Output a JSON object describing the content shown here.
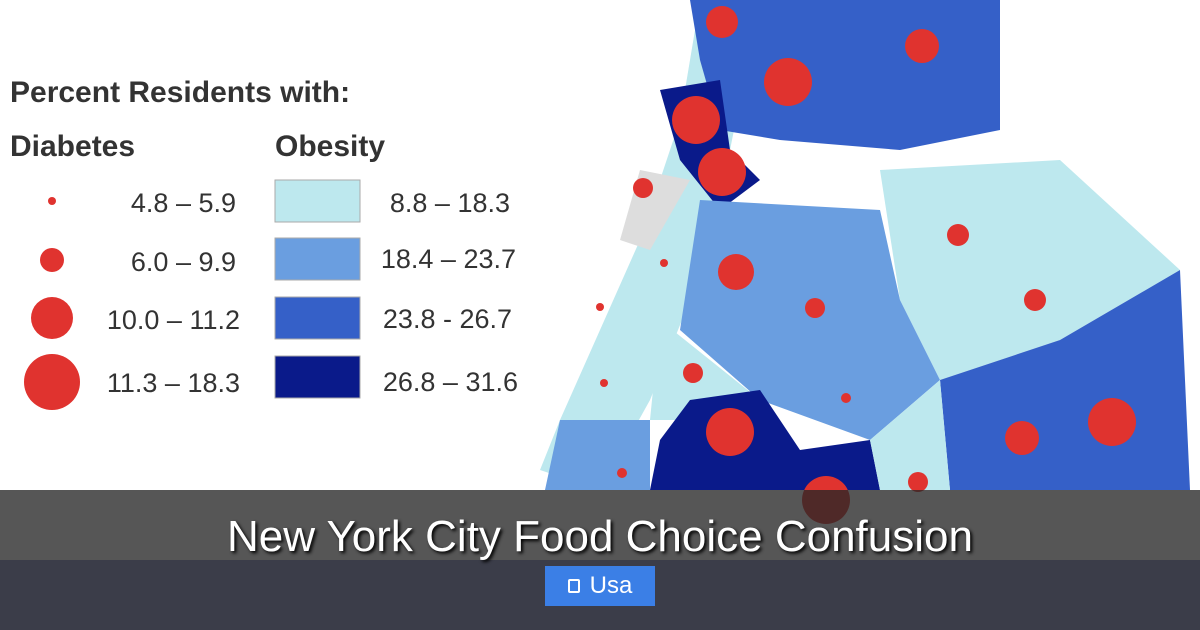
{
  "legend": {
    "title": "Percent Residents with:",
    "diabetes": {
      "heading": "Diabetes",
      "items": [
        "4.8 – 5.9",
        "6.0 – 9.9",
        "10.0 – 11.2",
        "11.3 – 18.3"
      ]
    },
    "obesity": {
      "heading": "Obesity",
      "items": [
        "8.8 – 18.3",
        "18.4 – 23.7",
        "23.8 - 26.7",
        "26.8 – 31.6"
      ]
    }
  },
  "title": "New York City Food Choice Confusion",
  "tag": "Usa"
}
